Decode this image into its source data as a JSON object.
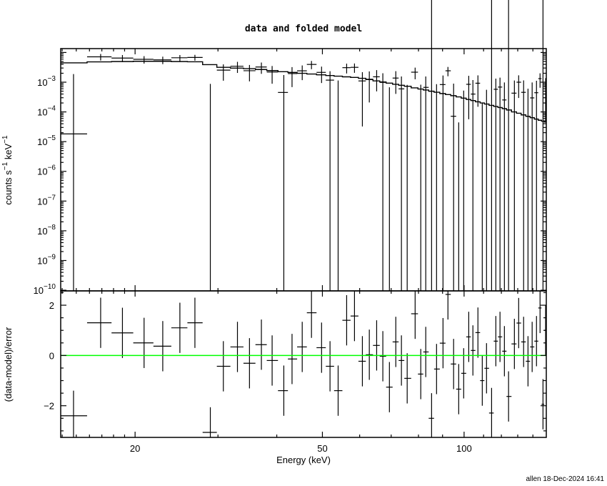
{
  "chart_data": [
    {
      "type": "scatter",
      "panel": "top",
      "title": "data and folded model",
      "xlabel": "Energy (keV)",
      "ylabel": "counts s⁻¹ keV⁻¹",
      "ylabel_parts": {
        "a": "counts s",
        "sup1": "−1",
        "b": " keV",
        "sup2": "−1"
      },
      "xscale": "log",
      "yscale": "log",
      "xlim": [
        13.9,
        149.5
      ],
      "ylim": [
        9.5e-11,
        0.0135
      ],
      "ytick_values": [
        0.001,
        0.0001,
        1e-05,
        1e-06,
        1e-07,
        1e-08,
        1e-09,
        1e-10
      ],
      "ytick_base": "10",
      "ytick_exponents": [
        "−3",
        "−4",
        "−5",
        "−6",
        "−7",
        "−8",
        "−9",
        "−10"
      ],
      "model_knots": [
        [
          14,
          0.00435
        ],
        [
          17,
          0.00485
        ],
        [
          22,
          0.0051
        ],
        [
          27,
          0.00485
        ],
        [
          31,
          0.0031
        ],
        [
          36,
          0.0028
        ],
        [
          42,
          0.0022
        ],
        [
          47,
          0.0019
        ],
        [
          60,
          0.0014
        ],
        [
          76,
          0.00072
        ],
        [
          96,
          0.00034
        ],
        [
          122,
          0.000128
        ],
        [
          150,
          4.4e-05
        ]
      ],
      "error_knots": [
        [
          14,
          0.0019
        ],
        [
          50,
          0.0012
        ],
        [
          100,
          0.0008
        ],
        [
          150,
          0.00066
        ]
      ],
      "series": [
        {
          "name": "data"
        },
        {
          "name": "folded model"
        }
      ]
    },
    {
      "type": "scatter",
      "panel": "bottom",
      "xlabel": "Energy (keV)",
      "ylabel": "(data-model)/error",
      "xscale": "log",
      "xlim": [
        13.9,
        149.5
      ],
      "ylim": [
        -3.26,
        2.57
      ],
      "ytick_values": [
        2,
        0,
        -2
      ],
      "ytick_labels": [
        "2",
        "0",
        "−2"
      ],
      "xtick_values": [
        20,
        50,
        100
      ],
      "xtick_labels": [
        "20",
        "50",
        "100"
      ],
      "zero_line_color": "#00ff00",
      "energy": [
        14.8,
        16.9,
        18.8,
        20.9,
        22.9,
        24.9,
        26.8,
        28.9,
        30.8,
        33.0,
        35.0,
        37.1,
        39.1,
        41.4,
        43.1,
        45.3,
        47.4,
        49.8,
        51.9,
        54.0,
        56.3,
        58.5,
        60.8,
        62.9,
        65.2,
        67.2,
        69.4,
        71.6,
        73.6,
        75.7,
        78.7,
        80.9,
        82.9,
        85.3,
        87.4,
        90.2,
        92.4,
        95.0,
        97.4,
        99.8,
        102.3,
        104.4,
        107.0,
        109.3,
        111.6,
        114.4,
        116.8,
        119.2,
        121.8,
        124.3,
        127.9,
        130.6,
        133.8,
        136.7,
        139.5,
        142.5,
        145.0,
        147.1,
        149.0
      ],
      "residual": [
        -2.4,
        1.3,
        0.9,
        0.5,
        0.37,
        1.1,
        1.3,
        -3.06,
        -0.43,
        0.34,
        -0.31,
        0.43,
        -0.2,
        -1.4,
        -0.14,
        0.34,
        1.7,
        0.31,
        -0.43,
        -1.4,
        1.4,
        1.57,
        -0.23,
        0.03,
        0.4,
        -0.03,
        -1.26,
        0.54,
        -0.2,
        -0.91,
        1.66,
        -0.74,
        0.14,
        -2.5,
        -0.54,
        0.49,
        2.43,
        -0.34,
        -1.34,
        -0.71,
        0.74,
        0.2,
        0.91,
        -1.0,
        -0.51,
        -2.29,
        0.57,
        0.74,
        0.17,
        -1.63,
        0.46,
        1.29,
        0.54,
        -0.23,
        0.34,
        0.57,
        1.89,
        -1.94,
        1.0
      ],
      "residual_error": 1
    }
  ],
  "footer": "allen 18-Dec-2024 16:41"
}
